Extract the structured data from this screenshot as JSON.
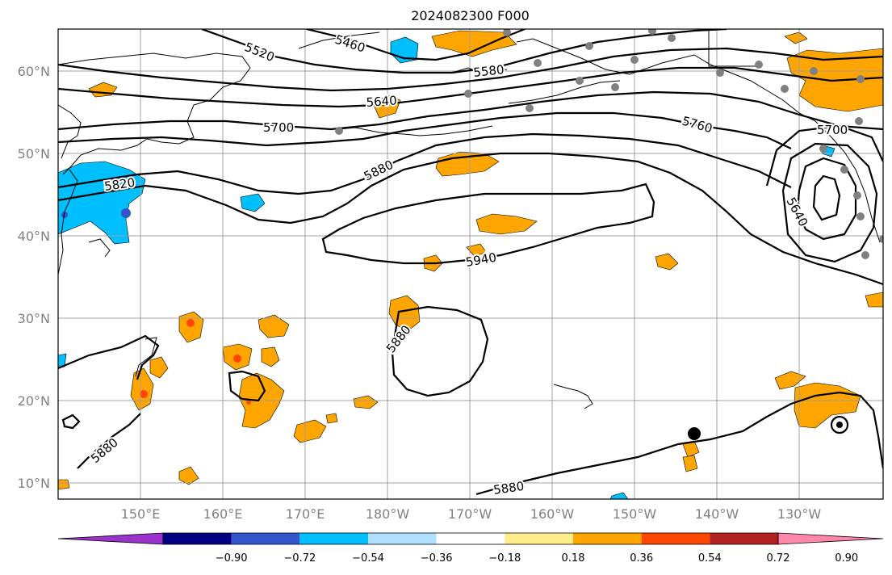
{
  "title": "2024082300 F000",
  "lat_labels": [
    "60°N",
    "50°N",
    "40°N",
    "30°N",
    "20°N",
    "10°N"
  ],
  "lon_labels": [
    "150°E",
    "160°E",
    "170°E",
    "180°W",
    "170°W",
    "160°W",
    "150°W",
    "140°W",
    "130°W"
  ],
  "contour_labels": [
    "5460",
    "5520",
    "5580",
    "5640",
    "5700",
    "5760",
    "5700",
    "5820",
    "5880",
    "5940",
    "5640",
    "5880",
    "5880",
    "5880"
  ],
  "colorbar": {
    "ticks": [
      "−0.90",
      "−0.72",
      "−0.54",
      "−0.36",
      "−0.18",
      "0.18",
      "0.36",
      "0.54",
      "0.72",
      "0.90"
    ],
    "colors": [
      "#9933cc",
      "#000080",
      "#3355cc",
      "#00bfff",
      "#b0e0ff",
      "#ffffff",
      "#ffec8b",
      "#ffa500",
      "#ff4500",
      "#b22222",
      "#ff88aa"
    ]
  },
  "colors": {
    "positive": "#ffa500",
    "positive_strong": "#ff4500",
    "negative": "#00bfff",
    "negative_strong": "#3355cc",
    "station": "#808080",
    "grid": "#a0a0a0"
  }
}
